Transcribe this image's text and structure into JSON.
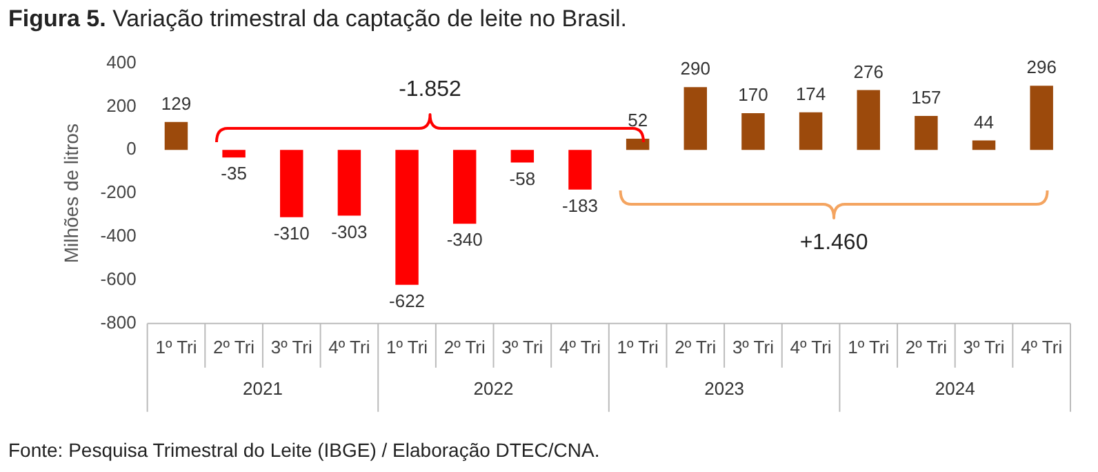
{
  "chart_data": {
    "type": "bar",
    "title": "Figura 5. Variação trimestral da captação de leite no Brasil.",
    "ylabel": "Milhões de litros",
    "categories": [
      "1º Tri",
      "2º Tri",
      "3º Tri",
      "4º Tri",
      "1º Tri",
      "2º Tri",
      "3º Tri",
      "4º Tri",
      "1º Tri",
      "2º Tri",
      "3º Tri",
      "4º Tri",
      "1º Tri",
      "2º Tri",
      "3º Tri",
      "4º Tri"
    ],
    "values": [
      129,
      -35,
      -310,
      -303,
      -622,
      -340,
      -58,
      -183,
      52,
      290,
      170,
      174,
      276,
      157,
      44,
      296
    ],
    "colors": [
      "#9c4a0c",
      "#ff0000",
      "#ff0000",
      "#ff0000",
      "#ff0000",
      "#ff0000",
      "#ff0000",
      "#ff0000",
      "#9c4a0c",
      "#9c4a0c",
      "#9c4a0c",
      "#9c4a0c",
      "#9c4a0c",
      "#9c4a0c",
      "#9c4a0c",
      "#9c4a0c"
    ],
    "ylim": [
      -800,
      400
    ],
    "yticks": [
      -800,
      -600,
      -400,
      -200,
      0,
      200,
      400
    ],
    "data_labels": true,
    "legend": false,
    "annotations": [
      "-1.852",
      "+1.460",
      "2021",
      "2022",
      "2023",
      "2024",
      "Fonte: Pesquisa Trimestral do Leite (IBGE) / Elaboração DTEC/CNA."
    ]
  }
}
